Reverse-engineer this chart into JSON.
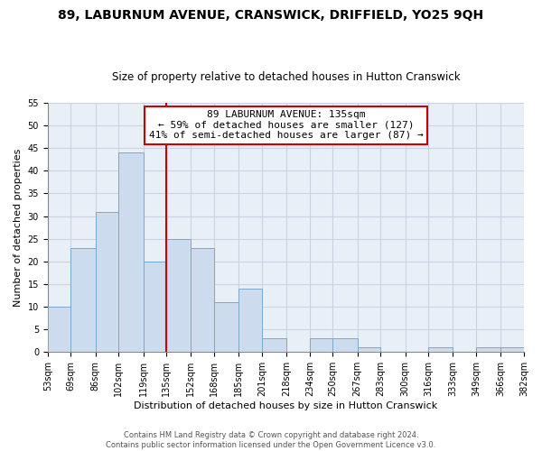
{
  "title": "89, LABURNUM AVENUE, CRANSWICK, DRIFFIELD, YO25 9QH",
  "subtitle": "Size of property relative to detached houses in Hutton Cranswick",
  "xlabel": "Distribution of detached houses by size in Hutton Cranswick",
  "ylabel": "Number of detached properties",
  "bar_color": "#ccdcee",
  "bar_edge_color": "#7aa8cc",
  "vline_x": 135,
  "vline_color": "#cc0000",
  "annotation_title": "89 LABURNUM AVENUE: 135sqm",
  "annotation_line1": "← 59% of detached houses are smaller (127)",
  "annotation_line2": "41% of semi-detached houses are larger (87) →",
  "bin_edges": [
    53,
    69,
    86,
    102,
    119,
    135,
    152,
    168,
    185,
    201,
    218,
    234,
    250,
    267,
    283,
    300,
    316,
    333,
    349,
    366,
    382
  ],
  "bin_counts": [
    10,
    23,
    31,
    44,
    20,
    25,
    23,
    11,
    14,
    3,
    0,
    3,
    3,
    1,
    0,
    0,
    1,
    0,
    1,
    1
  ],
  "xlim": [
    53,
    382
  ],
  "ylim": [
    0,
    55
  ],
  "yticks": [
    0,
    5,
    10,
    15,
    20,
    25,
    30,
    35,
    40,
    45,
    50,
    55
  ],
  "footer_line1": "Contains HM Land Registry data © Crown copyright and database right 2024.",
  "footer_line2": "Contains public sector information licensed under the Open Government Licence v3.0.",
  "background_color": "#ffffff",
  "plot_bg_color": "#e8eff7",
  "grid_color": "#c8d4e4",
  "title_fontsize": 10,
  "subtitle_fontsize": 8.5,
  "xlabel_fontsize": 8,
  "ylabel_fontsize": 8,
  "tick_fontsize": 7,
  "annot_fontsize": 8,
  "footer_fontsize": 6
}
